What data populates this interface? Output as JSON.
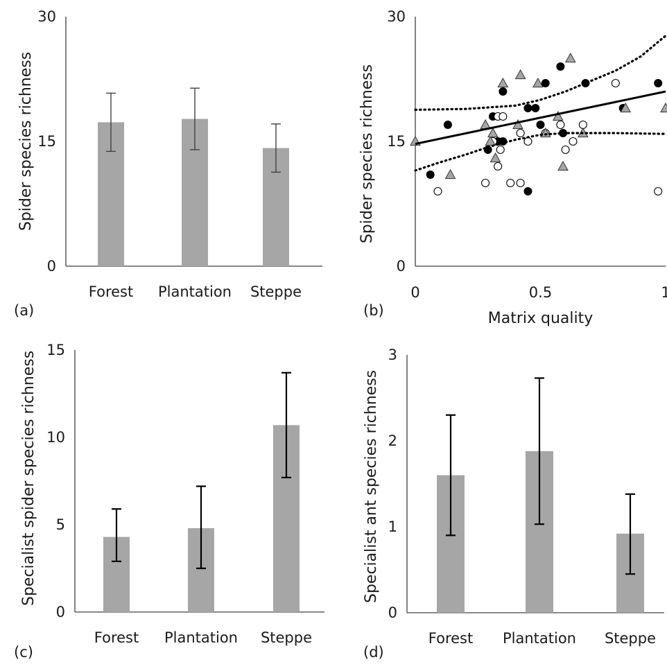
{
  "figure": {
    "panels": [
      {
        "label": "(a)"
      },
      {
        "label": "(b)"
      },
      {
        "label": "(c)"
      },
      {
        "label": "(d)"
      }
    ]
  },
  "chart_data": [
    {
      "panel": "(a)",
      "type": "bar",
      "ylabel": "Spider species richness",
      "xlabel": "",
      "categories": [
        "Forest",
        "Plantation",
        "Steppe"
      ],
      "values": [
        17.3,
        17.7,
        14.2
      ],
      "error_low": [
        13.8,
        14.0,
        11.3
      ],
      "error_high": [
        20.8,
        21.4,
        17.1
      ],
      "ylim": [
        0,
        30
      ],
      "yticks": [
        "0",
        "15",
        "30"
      ],
      "bar_color": "#a6a6a6",
      "errorbar_color": "#404040",
      "grid": false
    },
    {
      "panel": "(b)",
      "type": "scatter",
      "ylabel": "Spider species richness",
      "xlabel": "Matrix quality",
      "xlim": [
        0,
        1
      ],
      "ylim": [
        0,
        30
      ],
      "xticks": [
        "0",
        "0.5",
        "1"
      ],
      "yticks": [
        "0",
        "15",
        "30"
      ],
      "series": [
        {
          "marker": "filled-circle",
          "color": "#000000",
          "points": [
            [
              0.06,
              11
            ],
            [
              0.13,
              17
            ],
            [
              0.29,
              14
            ],
            [
              0.31,
              18
            ],
            [
              0.33,
              15
            ],
            [
              0.35,
              15
            ],
            [
              0.35,
              21
            ],
            [
              0.45,
              19
            ],
            [
              0.45,
              9
            ],
            [
              0.48,
              19
            ],
            [
              0.5,
              17
            ],
            [
              0.52,
              22
            ],
            [
              0.58,
              24
            ],
            [
              0.59,
              16
            ],
            [
              0.68,
              22
            ],
            [
              0.83,
              19
            ],
            [
              0.97,
              22
            ]
          ]
        },
        {
          "marker": "open-circle",
          "color": "#ffffff",
          "points": [
            [
              0.09,
              9
            ],
            [
              0.28,
              10
            ],
            [
              0.31,
              15
            ],
            [
              0.33,
              12
            ],
            [
              0.33,
              18
            ],
            [
              0.34,
              14
            ],
            [
              0.35,
              18
            ],
            [
              0.38,
              10
            ],
            [
              0.42,
              16
            ],
            [
              0.42,
              10
            ],
            [
              0.45,
              15
            ],
            [
              0.52,
              16
            ],
            [
              0.58,
              17
            ],
            [
              0.6,
              14
            ],
            [
              0.63,
              15
            ],
            [
              0.67,
              17
            ],
            [
              0.8,
              22
            ],
            [
              0.97,
              9
            ]
          ]
        },
        {
          "marker": "triangle",
          "color": "#a6a6a6",
          "points": [
            [
              0.0,
              15
            ],
            [
              0.14,
              11
            ],
            [
              0.28,
              17
            ],
            [
              0.3,
              15
            ],
            [
              0.31,
              16
            ],
            [
              0.32,
              13
            ],
            [
              0.35,
              22
            ],
            [
              0.41,
              17
            ],
            [
              0.42,
              23
            ],
            [
              0.49,
              22
            ],
            [
              0.52,
              16
            ],
            [
              0.57,
              18
            ],
            [
              0.59,
              12
            ],
            [
              0.62,
              25
            ],
            [
              0.67,
              16
            ],
            [
              0.84,
              19
            ],
            [
              1.0,
              19
            ]
          ]
        }
      ],
      "fit_line": {
        "x": [
          0,
          1
        ],
        "y": [
          14.7,
          21.0
        ],
        "style": "solid"
      },
      "confidence_band": {
        "style": "dotted",
        "upper": {
          "x": [
            0,
            0.2,
            0.4,
            0.5,
            0.6,
            0.8,
            0.9,
            1.0
          ],
          "y": [
            18.8,
            18.9,
            19.3,
            20.0,
            21.0,
            23.5,
            25.2,
            27.7
          ]
        },
        "lower": {
          "x": [
            0,
            0.1,
            0.2,
            0.3,
            0.4,
            0.5,
            0.6,
            0.8,
            1.0
          ],
          "y": [
            11.5,
            12.5,
            13.4,
            14.4,
            15.2,
            15.8,
            16.0,
            16.0,
            15.9
          ]
        }
      },
      "grid": false
    },
    {
      "panel": "(c)",
      "type": "bar",
      "ylabel": "Specialist spider species richness",
      "xlabel": "",
      "categories": [
        "Forest",
        "Plantation",
        "Steppe"
      ],
      "values": [
        4.3,
        4.8,
        10.7
      ],
      "error_low": [
        2.9,
        2.5,
        7.7
      ],
      "error_high": [
        5.9,
        7.2,
        13.7
      ],
      "ylim": [
        0,
        15
      ],
      "yticks": [
        "0",
        "5",
        "10",
        "15"
      ],
      "bar_color": "#a6a6a6",
      "errorbar_color": "#000000",
      "grid": false
    },
    {
      "panel": "(d)",
      "type": "bar",
      "ylabel": "Specialist ant species richness",
      "xlabel": "",
      "categories": [
        "Forest",
        "Plantation",
        "Steppe"
      ],
      "values": [
        1.6,
        1.88,
        0.92
      ],
      "error_low": [
        0.9,
        1.03,
        0.45
      ],
      "error_high": [
        2.3,
        2.73,
        1.38
      ],
      "ylim": [
        0,
        3
      ],
      "yticks": [
        "0",
        "1",
        "2",
        "3"
      ],
      "bar_color": "#a6a6a6",
      "errorbar_color": "#000000",
      "grid": false
    }
  ]
}
